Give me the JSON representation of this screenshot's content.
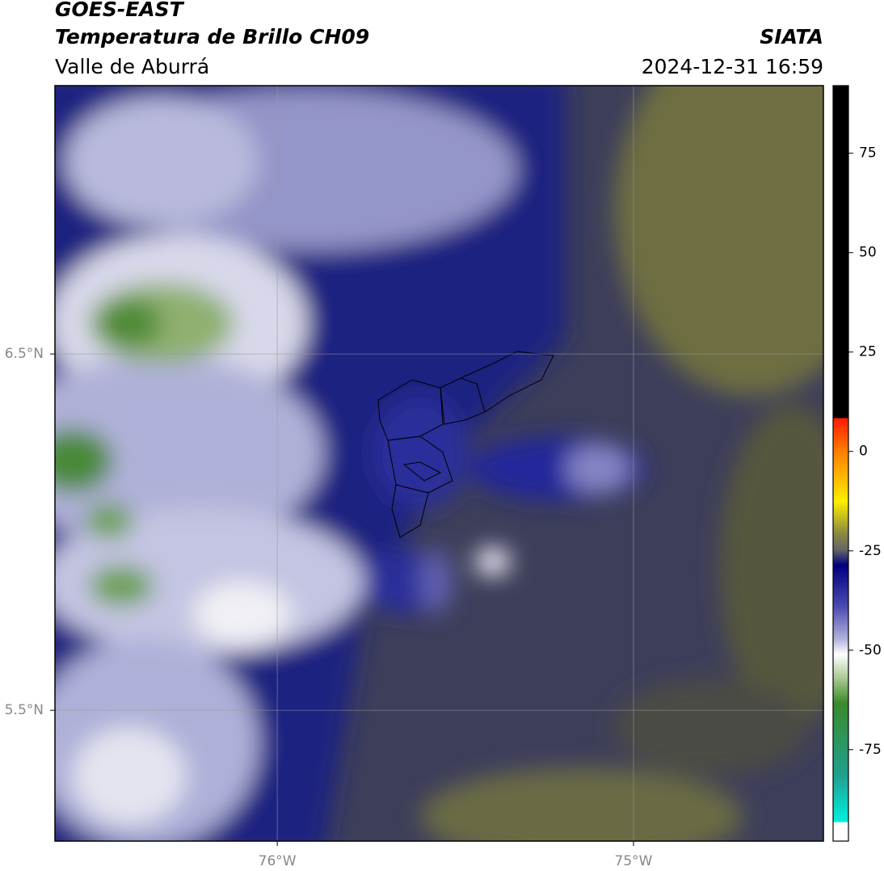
{
  "header": {
    "title": "GOES-EAST",
    "subtitle": "Temperatura de Brillo CH09",
    "region": "Valle de Aburrá",
    "source": "SIATA",
    "datetime": "2024-12-31 16:59"
  },
  "map": {
    "latlim": [
      5.133,
      7.253
    ],
    "lonlim": [
      -76.624,
      -74.467
    ],
    "lat_ticks": [
      {
        "value": 6.5,
        "label": "6.5°N"
      },
      {
        "value": 5.5,
        "label": "5.5°N"
      }
    ],
    "lon_ticks": [
      {
        "value": -76,
        "label": "76°W"
      },
      {
        "value": -75,
        "label": "75°W"
      }
    ]
  },
  "colorbar": {
    "lim": [
      -98,
      92
    ],
    "ticks": [
      75,
      50,
      25,
      0,
      -25,
      -50,
      -75
    ]
  }
}
